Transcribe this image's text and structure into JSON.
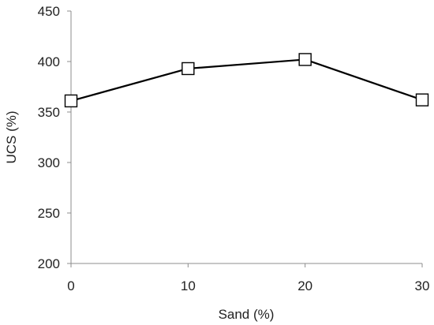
{
  "chart_data": {
    "type": "line",
    "title": "",
    "xlabel": "Sand (%)",
    "ylabel": "UCS (%)",
    "x": [
      0,
      10,
      20,
      30
    ],
    "x_ticks": [
      "0",
      "10",
      "20",
      "30"
    ],
    "xlim": [
      0,
      30
    ],
    "y_ticks": [
      "200",
      "250",
      "300",
      "350",
      "400",
      "450"
    ],
    "ylim": [
      200,
      450
    ],
    "grid": false,
    "legend": "none",
    "series": [
      {
        "values": [
          361,
          393,
          402,
          362
        ],
        "marker": "open-square",
        "color": "#000000"
      }
    ]
  }
}
